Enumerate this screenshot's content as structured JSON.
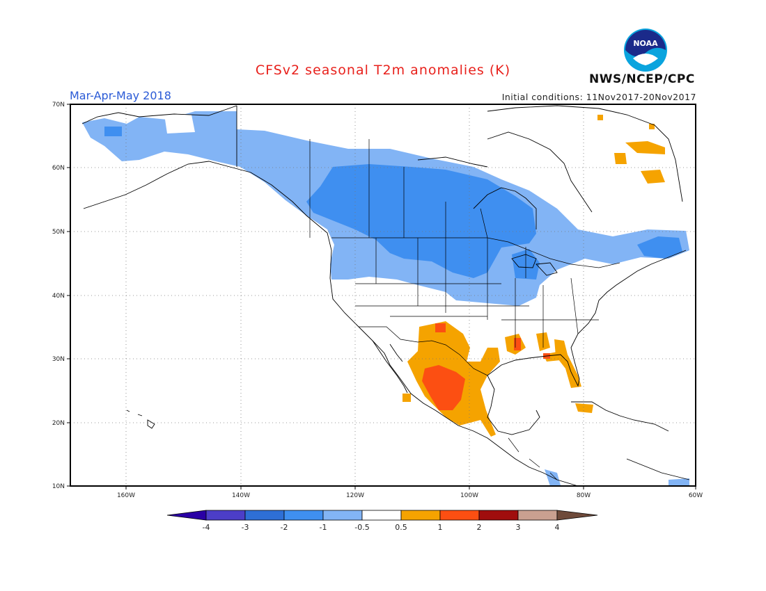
{
  "header": {
    "title": "CFSv2 seasonal T2m anomalies (K)",
    "period": "Mar-Apr-May 2018",
    "initial_conditions": "Initial conditions: 11Nov2017-20Nov2017",
    "agency": "NWS/NCEP/CPC",
    "logo_text": "NOAA"
  },
  "map": {
    "lat_ticks": [
      "70N",
      "60N",
      "50N",
      "40N",
      "30N",
      "20N",
      "10N"
    ],
    "lon_ticks": [
      "160W",
      "140W",
      "120W",
      "100W",
      "80W",
      "60W"
    ],
    "colors": {
      "cold4": "#2a00a5",
      "cold3": "#4c3ec8",
      "cold2": "#2e6fd6",
      "cold1": "#3f8ff0",
      "cold05": "#82b4f5",
      "neutral": "#ffffff",
      "warm05": "#f5a300",
      "warm1": "#fc4f12",
      "warm2": "#e02508",
      "warm3": "#a00d0d",
      "warm4": "#c9a090",
      "warm5": "#6e4a3a"
    }
  },
  "colorbar": {
    "labels": [
      "-4",
      "-3",
      "-2",
      "-1",
      "-0.5",
      "0.5",
      "1",
      "2",
      "3",
      "4"
    ]
  }
}
